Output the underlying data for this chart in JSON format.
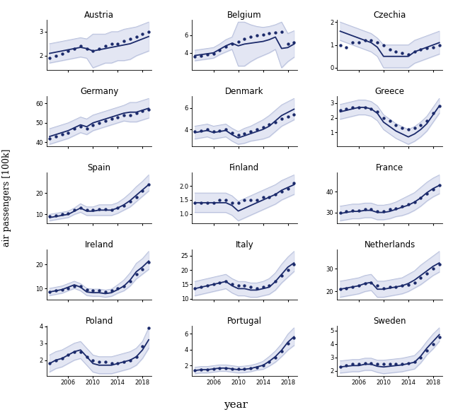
{
  "countries": [
    "Austria",
    "Belgium",
    "Czechia",
    "Germany",
    "Denmark",
    "Greece",
    "Spain",
    "Finland",
    "France",
    "Ireland",
    "Italy",
    "Netherlands",
    "Poland",
    "Portugal",
    "Sweden"
  ],
  "years": [
    2003,
    2004,
    2005,
    2006,
    2007,
    2008,
    2009,
    2010,
    2011,
    2012,
    2013,
    2014,
    2015,
    2016,
    2017,
    2018,
    2019
  ],
  "obs": {
    "Austria": [
      1.9,
      2.0,
      2.1,
      2.2,
      2.3,
      2.4,
      2.3,
      2.2,
      2.3,
      2.4,
      2.5,
      2.5,
      2.6,
      2.7,
      2.8,
      2.9,
      3.0
    ],
    "Belgium": [
      3.6,
      3.7,
      3.8,
      3.9,
      4.3,
      4.7,
      5.0,
      5.3,
      5.6,
      5.8,
      6.0,
      6.1,
      6.2,
      6.3,
      6.4,
      5.0,
      5.2
    ],
    "Czechia": [
      1.0,
      0.9,
      1.1,
      1.1,
      1.2,
      1.2,
      1.1,
      1.0,
      0.8,
      0.7,
      0.65,
      0.6,
      0.7,
      0.8,
      0.85,
      0.9,
      1.0
    ],
    "Germany": [
      42.0,
      43.0,
      44.0,
      45.0,
      47.0,
      48.0,
      47.0,
      49.0,
      50.0,
      51.0,
      52.0,
      53.0,
      54.0,
      54.0,
      55.0,
      56.0,
      57.0
    ],
    "Denmark": [
      3.8,
      3.9,
      4.0,
      3.8,
      3.9,
      4.0,
      3.7,
      3.5,
      3.6,
      3.8,
      4.0,
      4.2,
      4.5,
      4.7,
      5.0,
      5.2,
      5.4
    ],
    "Greece": [
      2.5,
      2.6,
      2.7,
      2.7,
      2.7,
      2.6,
      2.4,
      2.0,
      1.8,
      1.5,
      1.3,
      1.2,
      1.3,
      1.5,
      1.8,
      2.3,
      2.8
    ],
    "Spain": [
      9.0,
      9.5,
      10.0,
      10.5,
      12.0,
      13.0,
      12.0,
      12.0,
      12.5,
      12.5,
      12.0,
      13.0,
      14.0,
      16.0,
      18.0,
      21.0,
      24.0
    ],
    "Finland": [
      1.4,
      1.4,
      1.4,
      1.4,
      1.5,
      1.5,
      1.4,
      1.4,
      1.5,
      1.5,
      1.5,
      1.6,
      1.6,
      1.7,
      1.8,
      1.9,
      2.1
    ],
    "France": [
      30.0,
      30.5,
      31.0,
      31.0,
      31.5,
      31.5,
      30.5,
      30.5,
      31.5,
      32.0,
      33.0,
      34.0,
      35.0,
      37.0,
      39.0,
      41.0,
      43.0
    ],
    "Ireland": [
      8.5,
      9.0,
      9.5,
      10.0,
      11.0,
      11.0,
      9.5,
      9.0,
      9.0,
      8.5,
      9.0,
      10.0,
      11.0,
      13.0,
      16.0,
      18.0,
      21.0
    ],
    "Italy": [
      13.5,
      14.0,
      14.5,
      15.0,
      15.5,
      16.0,
      15.0,
      14.5,
      14.5,
      14.0,
      13.5,
      14.0,
      14.5,
      16.0,
      18.0,
      20.0,
      22.0
    ],
    "Netherlands": [
      21.0,
      21.5,
      22.0,
      22.5,
      23.5,
      24.0,
      22.5,
      21.5,
      22.0,
      22.0,
      22.5,
      23.0,
      24.0,
      26.0,
      28.0,
      30.0,
      32.0
    ],
    "Poland": [
      1.8,
      2.0,
      2.1,
      2.3,
      2.5,
      2.5,
      2.2,
      2.0,
      1.9,
      1.9,
      1.8,
      1.8,
      1.9,
      2.0,
      2.2,
      2.8,
      3.9
    ],
    "Portugal": [
      1.4,
      1.5,
      1.5,
      1.6,
      1.7,
      1.7,
      1.6,
      1.6,
      1.6,
      1.7,
      1.8,
      2.0,
      2.5,
      3.0,
      3.8,
      4.8,
      5.5
    ],
    "Sweden": [
      2.3,
      2.4,
      2.5,
      2.5,
      2.6,
      2.6,
      2.5,
      2.5,
      2.5,
      2.5,
      2.5,
      2.6,
      2.7,
      3.0,
      3.5,
      4.0,
      4.5
    ]
  },
  "pred_mean": {
    "Austria": [
      2.1,
      2.15,
      2.2,
      2.25,
      2.3,
      2.35,
      2.3,
      2.2,
      2.25,
      2.3,
      2.35,
      2.4,
      2.45,
      2.5,
      2.6,
      2.7,
      2.8
    ],
    "Belgium": [
      3.7,
      3.8,
      3.9,
      4.0,
      4.4,
      4.8,
      5.1,
      4.8,
      5.0,
      5.1,
      5.2,
      5.3,
      5.5,
      5.8,
      4.5,
      4.6,
      5.0
    ],
    "Czechia": [
      1.6,
      1.5,
      1.4,
      1.3,
      1.2,
      1.1,
      0.9,
      0.5,
      0.5,
      0.5,
      0.5,
      0.5,
      0.7,
      0.8,
      0.9,
      1.0,
      1.1
    ],
    "Germany": [
      43.0,
      44.0,
      45.0,
      46.0,
      47.5,
      49.0,
      48.0,
      50.0,
      51.0,
      52.0,
      53.0,
      54.0,
      55.0,
      55.5,
      55.5,
      56.5,
      57.5
    ],
    "Denmark": [
      3.7,
      3.8,
      3.9,
      3.7,
      3.8,
      3.9,
      3.5,
      3.2,
      3.4,
      3.6,
      3.8,
      4.0,
      4.3,
      4.8,
      5.3,
      5.6,
      5.9
    ],
    "Greece": [
      2.4,
      2.5,
      2.6,
      2.7,
      2.7,
      2.6,
      2.3,
      1.7,
      1.4,
      1.1,
      0.9,
      0.7,
      0.9,
      1.2,
      1.6,
      2.2,
      2.8
    ],
    "Spain": [
      8.5,
      9.0,
      9.5,
      10.0,
      11.5,
      13.0,
      11.5,
      11.5,
      12.0,
      12.0,
      12.0,
      13.0,
      14.5,
      16.5,
      19.0,
      21.5,
      24.0
    ],
    "Finland": [
      1.4,
      1.4,
      1.4,
      1.4,
      1.4,
      1.4,
      1.3,
      1.1,
      1.2,
      1.3,
      1.4,
      1.5,
      1.6,
      1.7,
      1.85,
      1.95,
      2.05
    ],
    "France": [
      29.5,
      30.0,
      30.5,
      30.5,
      31.0,
      31.0,
      30.0,
      30.0,
      30.5,
      31.5,
      32.5,
      33.5,
      35.0,
      37.0,
      39.5,
      41.5,
      43.0
    ],
    "Ireland": [
      8.5,
      9.0,
      9.5,
      10.5,
      11.5,
      10.5,
      8.5,
      8.2,
      8.2,
      7.8,
      8.2,
      9.5,
      11.0,
      13.5,
      17.0,
      19.0,
      21.5
    ],
    "Italy": [
      13.5,
      14.0,
      14.5,
      15.0,
      15.5,
      16.0,
      14.5,
      13.5,
      13.5,
      13.0,
      13.0,
      13.5,
      14.0,
      16.0,
      18.5,
      21.0,
      22.5
    ],
    "Netherlands": [
      21.0,
      21.5,
      22.0,
      22.5,
      23.5,
      24.0,
      21.0,
      21.0,
      21.5,
      22.0,
      22.5,
      23.5,
      25.0,
      27.0,
      29.0,
      31.0,
      32.5
    ],
    "Poland": [
      1.8,
      2.0,
      2.1,
      2.3,
      2.5,
      2.6,
      2.2,
      1.8,
      1.7,
      1.7,
      1.7,
      1.8,
      1.9,
      2.0,
      2.2,
      2.6,
      3.2
    ],
    "Portugal": [
      1.4,
      1.5,
      1.5,
      1.6,
      1.7,
      1.7,
      1.6,
      1.5,
      1.55,
      1.65,
      1.85,
      2.05,
      2.55,
      3.15,
      3.95,
      4.95,
      5.65
    ],
    "Sweden": [
      2.3,
      2.35,
      2.4,
      2.4,
      2.5,
      2.5,
      2.35,
      2.3,
      2.35,
      2.4,
      2.45,
      2.55,
      2.65,
      3.1,
      3.7,
      4.2,
      4.7
    ]
  },
  "pred_upper": {
    "Austria": [
      2.5,
      2.55,
      2.6,
      2.65,
      2.7,
      2.75,
      2.7,
      2.9,
      2.9,
      2.9,
      3.0,
      3.0,
      3.1,
      3.15,
      3.2,
      3.3,
      3.4
    ],
    "Belgium": [
      4.3,
      4.4,
      4.5,
      4.6,
      5.0,
      5.5,
      5.8,
      7.5,
      7.5,
      7.2,
      7.0,
      6.9,
      7.0,
      7.2,
      7.5,
      6.2,
      6.5
    ],
    "Czechia": [
      2.0,
      1.9,
      1.8,
      1.7,
      1.6,
      1.5,
      1.3,
      1.0,
      1.0,
      1.0,
      1.0,
      1.0,
      1.2,
      1.3,
      1.4,
      1.5,
      1.6
    ],
    "Germany": [
      47.0,
      48.0,
      49.0,
      50.0,
      51.5,
      53.0,
      52.0,
      54.0,
      55.0,
      56.0,
      57.0,
      58.0,
      59.0,
      60.5,
      60.5,
      61.5,
      62.5
    ],
    "Denmark": [
      4.3,
      4.4,
      4.5,
      4.3,
      4.4,
      4.5,
      4.1,
      3.8,
      4.1,
      4.3,
      4.6,
      4.9,
      5.3,
      5.8,
      6.3,
      6.6,
      6.9
    ],
    "Greece": [
      2.9,
      3.0,
      3.1,
      3.2,
      3.2,
      3.1,
      2.8,
      2.2,
      1.9,
      1.6,
      1.4,
      1.2,
      1.4,
      1.7,
      2.1,
      2.7,
      3.3
    ],
    "Spain": [
      10.0,
      10.5,
      11.0,
      11.5,
      13.0,
      15.0,
      13.5,
      13.5,
      14.5,
      14.5,
      14.5,
      15.5,
      17.5,
      20.0,
      23.0,
      25.5,
      28.5
    ],
    "Finland": [
      1.75,
      1.75,
      1.75,
      1.75,
      1.75,
      1.75,
      1.65,
      1.45,
      1.55,
      1.65,
      1.75,
      1.85,
      1.95,
      2.05,
      2.2,
      2.3,
      2.4
    ],
    "France": [
      33.0,
      33.5,
      34.0,
      34.0,
      34.5,
      34.5,
      33.5,
      33.5,
      34.0,
      35.0,
      36.5,
      38.0,
      39.5,
      42.0,
      44.5,
      46.5,
      48.0
    ],
    "Ireland": [
      10.0,
      10.5,
      11.0,
      12.0,
      13.0,
      12.0,
      10.0,
      9.7,
      9.7,
      9.3,
      9.7,
      11.5,
      13.5,
      16.5,
      20.5,
      22.5,
      25.5
    ],
    "Italy": [
      16.0,
      16.5,
      17.0,
      17.5,
      18.0,
      18.5,
      17.0,
      16.0,
      16.0,
      15.5,
      15.5,
      16.0,
      17.0,
      19.0,
      22.0,
      24.5,
      26.5
    ],
    "Netherlands": [
      24.5,
      25.0,
      25.5,
      26.0,
      27.0,
      27.5,
      24.5,
      24.5,
      25.0,
      25.5,
      26.0,
      27.5,
      29.0,
      31.5,
      33.5,
      35.5,
      37.5
    ],
    "Poland": [
      2.3,
      2.5,
      2.6,
      2.8,
      3.0,
      3.1,
      2.7,
      2.3,
      2.2,
      2.2,
      2.2,
      2.3,
      2.4,
      2.5,
      2.7,
      3.1,
      3.9
    ],
    "Portugal": [
      1.8,
      1.9,
      1.9,
      2.0,
      2.1,
      2.1,
      2.0,
      1.9,
      1.95,
      2.05,
      2.25,
      2.55,
      3.15,
      3.85,
      4.75,
      5.95,
      6.75
    ],
    "Sweden": [
      2.75,
      2.8,
      2.85,
      2.85,
      2.95,
      2.95,
      2.8,
      2.8,
      2.85,
      2.9,
      2.95,
      3.05,
      3.15,
      3.6,
      4.2,
      4.75,
      5.2
    ]
  },
  "pred_lower": {
    "Austria": [
      1.7,
      1.75,
      1.8,
      1.85,
      1.9,
      1.95,
      1.9,
      1.5,
      1.6,
      1.7,
      1.7,
      1.8,
      1.8,
      1.85,
      2.0,
      2.1,
      2.2
    ],
    "Belgium": [
      3.1,
      3.2,
      3.3,
      3.4,
      3.8,
      4.1,
      4.4,
      2.5,
      2.5,
      3.0,
      3.4,
      3.7,
      4.0,
      4.4,
      2.3,
      3.0,
      3.5
    ],
    "Czechia": [
      1.2,
      1.1,
      1.0,
      0.9,
      0.8,
      0.7,
      0.5,
      0.0,
      0.0,
      0.0,
      0.0,
      0.0,
      0.2,
      0.3,
      0.4,
      0.5,
      0.6
    ],
    "Germany": [
      39.0,
      40.0,
      41.0,
      42.0,
      43.5,
      45.0,
      44.0,
      46.0,
      47.0,
      48.0,
      49.0,
      50.0,
      51.0,
      50.5,
      50.5,
      51.5,
      52.5
    ],
    "Denmark": [
      3.1,
      3.2,
      3.3,
      3.1,
      3.2,
      3.3,
      2.9,
      2.6,
      2.7,
      2.9,
      3.0,
      3.1,
      3.3,
      3.8,
      4.3,
      4.6,
      4.9
    ],
    "Greece": [
      1.9,
      2.0,
      2.1,
      2.2,
      2.2,
      2.1,
      1.8,
      1.2,
      0.9,
      0.6,
      0.4,
      0.2,
      0.4,
      0.7,
      1.1,
      1.7,
      2.3
    ],
    "Spain": [
      7.0,
      7.5,
      8.0,
      8.5,
      10.0,
      11.0,
      9.5,
      9.5,
      9.5,
      9.5,
      9.5,
      10.5,
      12.0,
      13.5,
      16.0,
      18.5,
      21.0
    ],
    "Finland": [
      1.05,
      1.05,
      1.05,
      1.05,
      1.05,
      1.05,
      0.95,
      0.75,
      0.85,
      0.95,
      1.05,
      1.15,
      1.25,
      1.35,
      1.5,
      1.6,
      1.7
    ],
    "France": [
      26.0,
      26.5,
      27.0,
      27.0,
      27.5,
      27.5,
      26.5,
      26.5,
      27.0,
      28.0,
      28.5,
      29.5,
      31.0,
      33.0,
      35.5,
      37.5,
      39.0
    ],
    "Ireland": [
      7.0,
      7.5,
      8.0,
      9.0,
      10.0,
      9.0,
      7.0,
      6.7,
      6.7,
      6.3,
      6.7,
      8.0,
      9.0,
      11.0,
      14.0,
      16.0,
      18.0
    ],
    "Italy": [
      11.0,
      11.5,
      12.0,
      12.5,
      13.0,
      13.5,
      12.0,
      11.0,
      11.0,
      10.5,
      10.5,
      11.0,
      11.5,
      13.0,
      15.5,
      17.5,
      19.5
    ],
    "Netherlands": [
      17.5,
      18.0,
      18.5,
      19.0,
      20.0,
      20.5,
      17.5,
      17.5,
      18.0,
      18.5,
      19.0,
      20.0,
      21.5,
      23.0,
      25.0,
      27.0,
      28.5
    ],
    "Poland": [
      1.3,
      1.5,
      1.6,
      1.8,
      2.0,
      2.1,
      1.7,
      1.3,
      1.2,
      1.2,
      1.2,
      1.3,
      1.4,
      1.5,
      1.7,
      2.1,
      2.7
    ],
    "Portugal": [
      1.0,
      1.1,
      1.1,
      1.2,
      1.3,
      1.3,
      1.2,
      1.1,
      1.15,
      1.25,
      1.45,
      1.55,
      1.95,
      2.45,
      3.15,
      3.95,
      4.55
    ],
    "Sweden": [
      1.85,
      1.9,
      1.95,
      1.95,
      2.05,
      2.05,
      1.9,
      1.8,
      1.85,
      1.9,
      1.95,
      2.05,
      2.15,
      2.6,
      3.2,
      3.65,
      4.2
    ]
  },
  "layout": {
    "nrows": 5,
    "ncols": 3,
    "figsize": [
      6.4,
      5.83
    ],
    "dpi": 100
  },
  "colors": {
    "dots": "#1b2a6b",
    "line": "#1b2a6b",
    "band_fill": "#c8cfe8",
    "band_line": "#b8c0dc",
    "background": "#ffffff"
  },
  "xlabel": "year",
  "ylabel": "air passengers [100k]",
  "xticks": [
    2006,
    2010,
    2014,
    2018
  ],
  "title_fontsize": 8.5,
  "tick_fontsize": 6.0,
  "xlabel_fontsize": 11,
  "ylabel_fontsize": 9
}
